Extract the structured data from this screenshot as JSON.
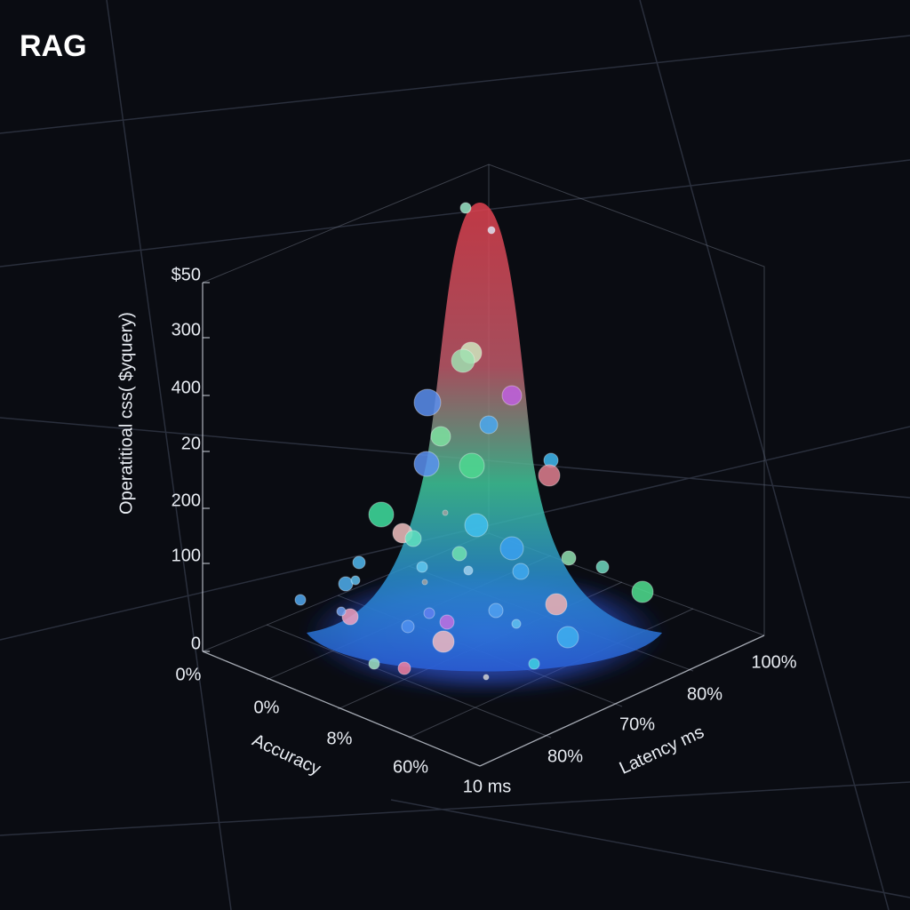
{
  "header": {
    "title": "RAG"
  },
  "axes": {
    "cost": {
      "label": "Operatitioal css( $yquery)",
      "ticks": [
        "$50",
        "300",
        "400",
        "20",
        "200",
        "100",
        "0"
      ]
    },
    "accuracy": {
      "label": "Accuracy",
      "ticks": [
        "0%",
        "0%",
        "8%",
        "60%"
      ]
    },
    "latency": {
      "label": "Latency ms",
      "ticks": [
        "10 ms",
        "80%",
        "70%",
        "80%",
        "100%"
      ]
    }
  }
}
